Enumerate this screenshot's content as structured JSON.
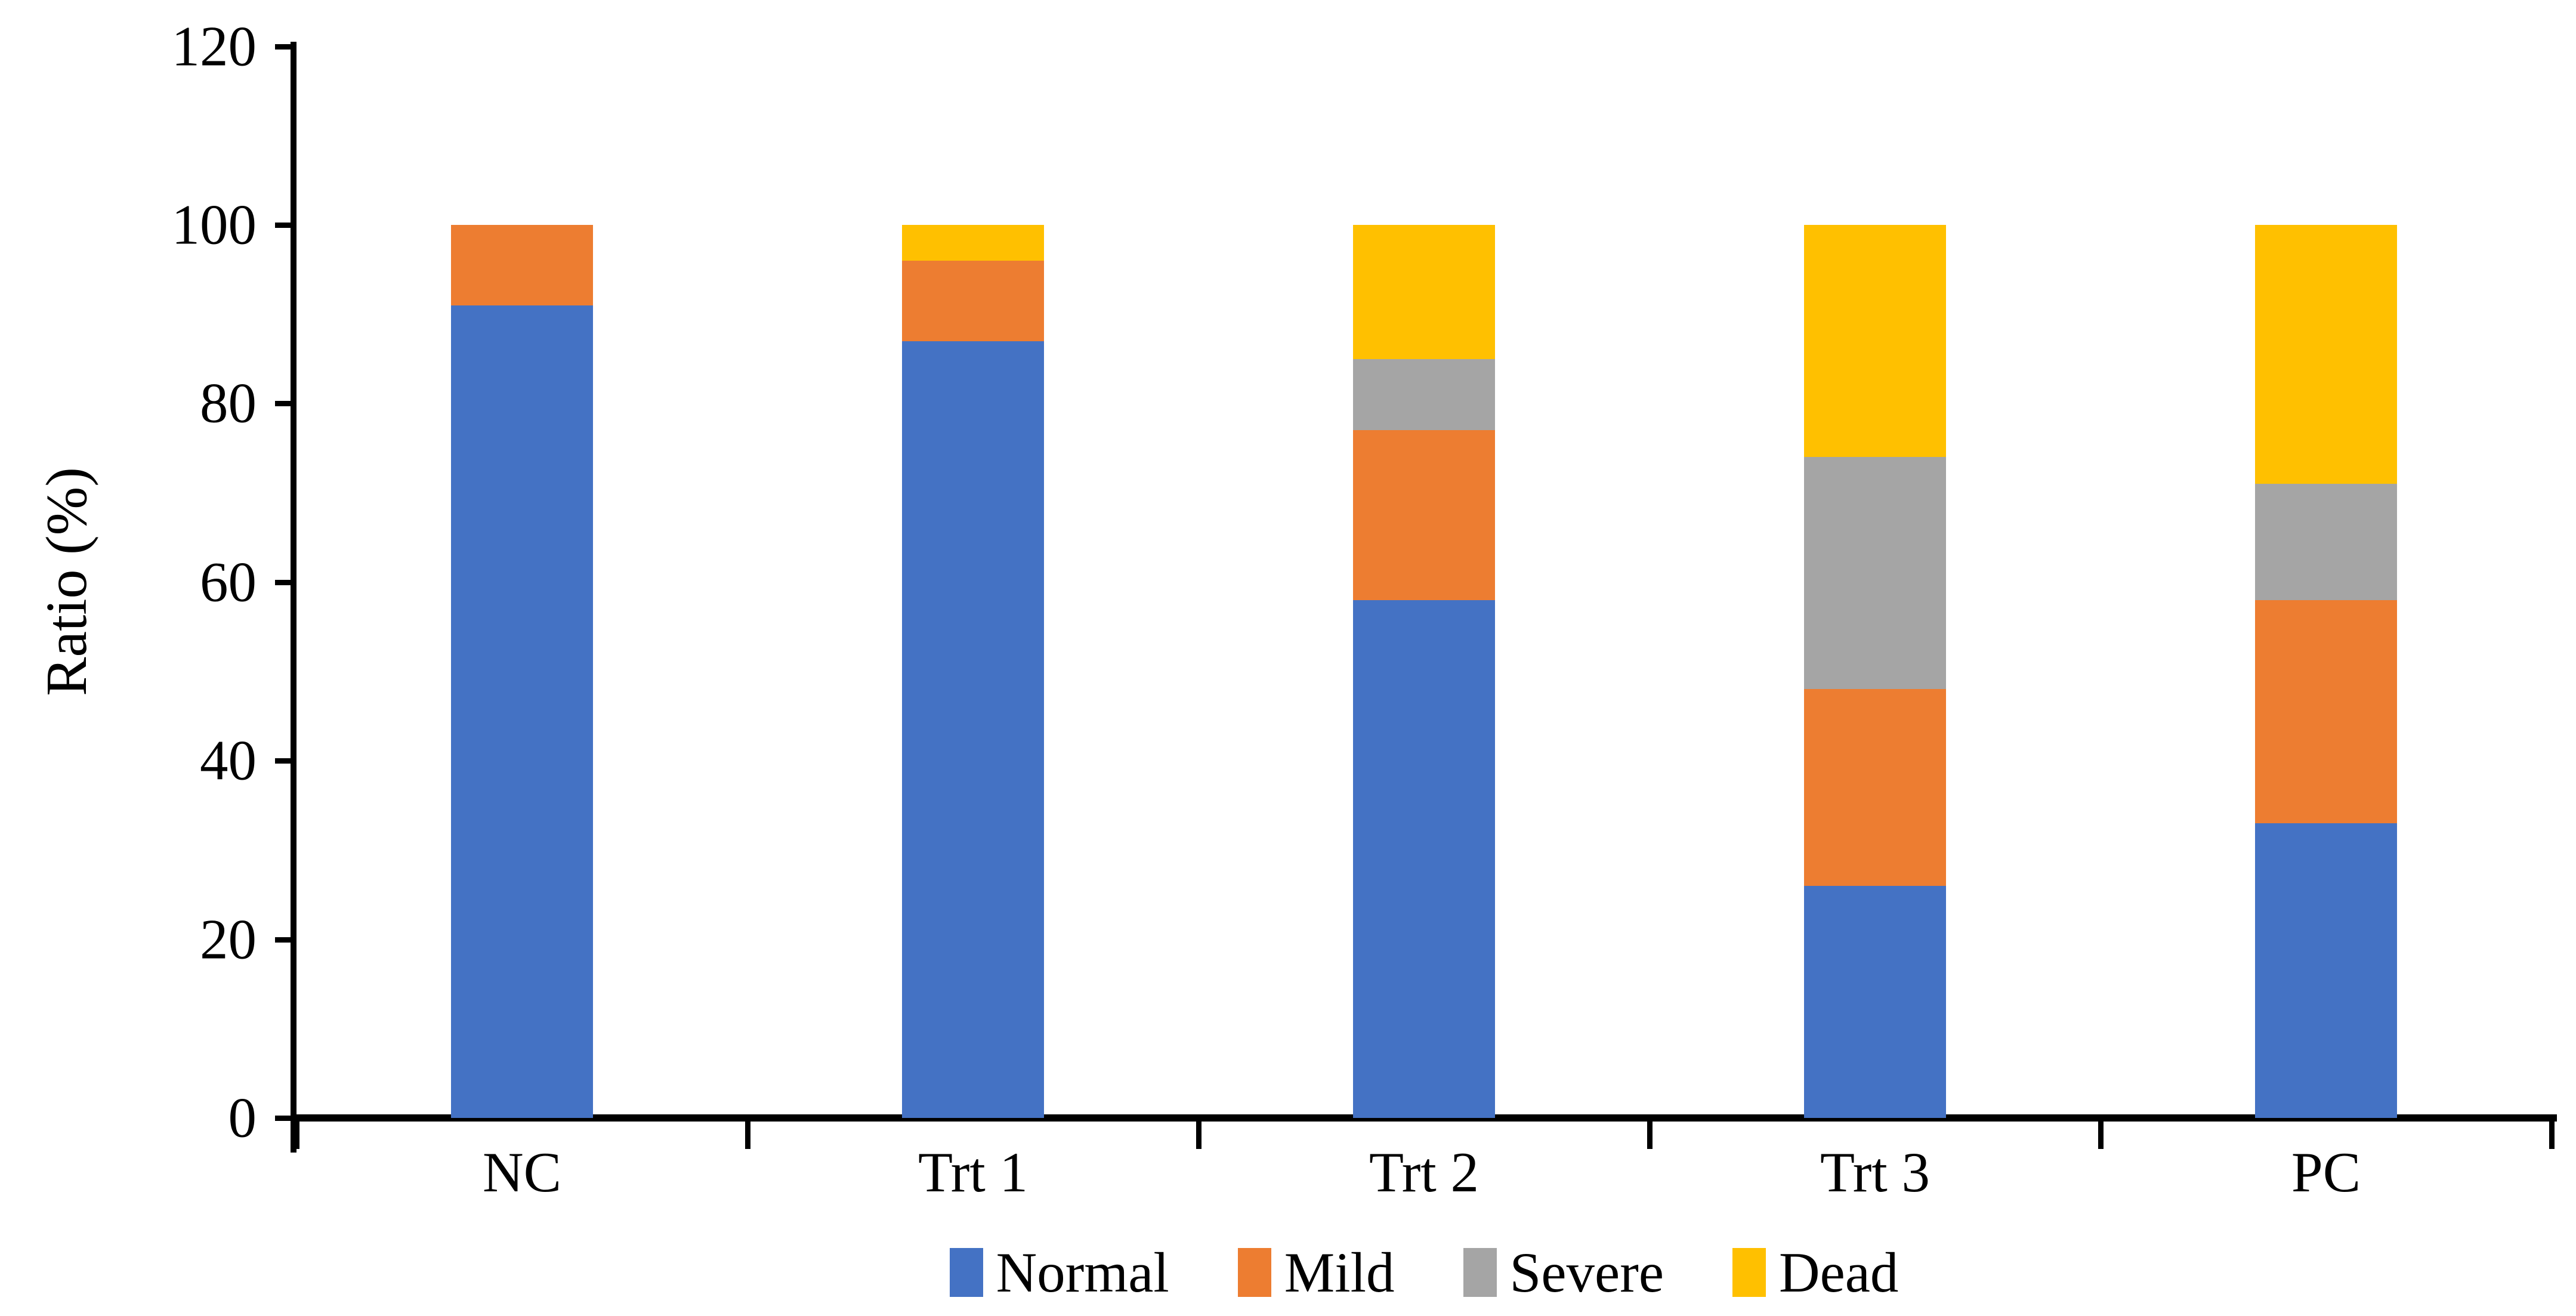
{
  "chart_data": {
    "type": "bar",
    "stacked": true,
    "orientation": "vertical",
    "title": "",
    "xlabel": "",
    "ylabel": "Ratio (%)",
    "categories": [
      "NC",
      "Trt 1",
      "Trt 2",
      "Trt 3",
      "PC"
    ],
    "series": [
      {
        "name": "Normal",
        "color": "#4472C4",
        "values": [
          91,
          87,
          58,
          26,
          33
        ]
      },
      {
        "name": "Mild",
        "color": "#ED7D31",
        "values": [
          9,
          9,
          19,
          22,
          25
        ]
      },
      {
        "name": "Severe",
        "color": "#A5A5A5",
        "values": [
          0,
          0,
          8,
          26,
          13
        ]
      },
      {
        "name": "Dead",
        "color": "#FFC000",
        "values": [
          0,
          4,
          15,
          26,
          29
        ]
      }
    ],
    "ylim": [
      0,
      120
    ],
    "ytick_step": 20,
    "yticks": [
      0,
      20,
      40,
      60,
      80,
      100,
      120
    ],
    "grid": false,
    "legend_position": "bottom",
    "axis_color": "#000000",
    "background_color": "#FFFFFF"
  }
}
